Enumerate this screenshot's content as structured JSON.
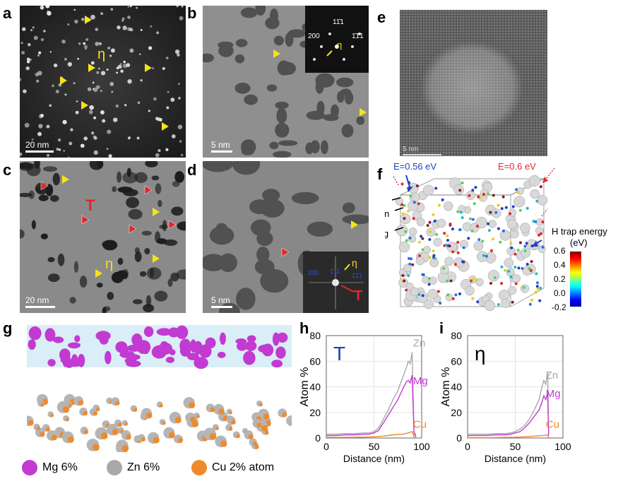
{
  "panels": {
    "a": {
      "label": "a",
      "scale": "20 nm",
      "eta": "η"
    },
    "b": {
      "label": "b",
      "scale": "5 nm",
      "inset": {
        "s200": "200",
        "s1m11": "11̄1",
        "sm1m11": "1̄1̄1",
        "eta": "η"
      }
    },
    "c": {
      "label": "c",
      "scale": "20 nm",
      "T": "T",
      "eta": "η"
    },
    "d": {
      "label": "d",
      "scale": "5 nm",
      "inset": {
        "s200": "200",
        "s111": "1̄11",
        "s11x": "1̄1̄1",
        "eta": "η",
        "T": "T"
      }
    },
    "e": {
      "label": "e",
      "scale": "5 nm"
    },
    "f": {
      "label": "f",
      "e056": "E=0.56 eV",
      "e06": "E=0.6 eV",
      "al": "Al",
      "zn": "Zn",
      "mg": "Mg",
      "cbar_title1": "H trap energy",
      "cbar_title2": "(eV)",
      "cbar_ticks": [
        "0.6",
        "0.4",
        "0.2",
        "0.0",
        "-0.2"
      ]
    },
    "g": {
      "label": "g",
      "legend": [
        "Mg 6%",
        "Zn 6%",
        "Cu 2% atom"
      ]
    }
  },
  "colors": {
    "mg": "#c23ad2",
    "zn": "#a8a8a8",
    "cu": "#ef8a2c",
    "yellow": "#f5e31a",
    "red": "#e0282a",
    "blue": "#1e3fc2"
  },
  "chart_data": [
    {
      "type": "line",
      "panel": "h",
      "annotation": "T",
      "xlabel": "Distance (nm)",
      "ylabel": "Atom %",
      "xlim": [
        0,
        100
      ],
      "ylim": [
        0,
        80
      ],
      "xticks": [
        0,
        50,
        100
      ],
      "yticks": [
        0,
        20,
        40,
        60,
        80
      ],
      "series": [
        {
          "name": "Zn",
          "color": "#a8a8a8",
          "x": [
            0,
            10,
            20,
            30,
            40,
            45,
            50,
            55,
            60,
            65,
            70,
            75,
            80,
            84,
            86,
            88,
            90,
            92,
            94
          ],
          "y": [
            3,
            3,
            3.5,
            3.5,
            4,
            4,
            5,
            8,
            15,
            22,
            30,
            37,
            47,
            55,
            60,
            58,
            67,
            5,
            2
          ]
        },
        {
          "name": "Mg",
          "color": "#c23ad2",
          "x": [
            0,
            10,
            20,
            30,
            40,
            45,
            50,
            55,
            60,
            65,
            70,
            75,
            80,
            84,
            86,
            88,
            90,
            92,
            94
          ],
          "y": [
            2,
            2,
            2.5,
            2.5,
            3,
            3,
            4,
            6,
            12,
            18,
            24,
            30,
            38,
            44,
            45,
            43,
            49,
            4,
            1
          ]
        },
        {
          "name": "Cu",
          "color": "#ef8a2c",
          "x": [
            0,
            10,
            20,
            30,
            40,
            50,
            60,
            70,
            80,
            86,
            90,
            92,
            94
          ],
          "y": [
            0.5,
            0.5,
            0.5,
            0.6,
            0.7,
            1,
            1.5,
            2.5,
            3,
            4,
            5,
            1,
            0
          ]
        }
      ]
    },
    {
      "type": "line",
      "panel": "i",
      "annotation": "η",
      "xlabel": "Distance (nm)",
      "ylabel": "Atom %",
      "xlim": [
        0,
        100
      ],
      "ylim": [
        0,
        80
      ],
      "xticks": [
        0,
        50,
        100
      ],
      "yticks": [
        0,
        20,
        40,
        60,
        80
      ],
      "series": [
        {
          "name": "Zn",
          "color": "#a8a8a8",
          "x": [
            0,
            10,
            20,
            30,
            40,
            45,
            50,
            55,
            60,
            65,
            70,
            75,
            78,
            80,
            82,
            84,
            85
          ],
          "y": [
            3,
            3,
            3,
            3.5,
            3.5,
            4,
            5,
            7,
            10,
            15,
            22,
            30,
            40,
            45,
            42,
            52,
            3
          ]
        },
        {
          "name": "Mg",
          "color": "#c23ad2",
          "x": [
            0,
            10,
            20,
            30,
            40,
            45,
            50,
            55,
            60,
            65,
            70,
            75,
            78,
            80,
            82,
            84,
            85
          ],
          "y": [
            2,
            2,
            2,
            2.5,
            2.5,
            3,
            4,
            5,
            8,
            12,
            17,
            22,
            28,
            33,
            30,
            35,
            2
          ]
        },
        {
          "name": "Cu",
          "color": "#ef8a2c",
          "x": [
            0,
            10,
            20,
            30,
            40,
            50,
            60,
            70,
            80,
            84,
            85
          ],
          "y": [
            0.3,
            0.3,
            0.3,
            0.4,
            0.5,
            0.6,
            1,
            1.5,
            2,
            2.5,
            0
          ]
        }
      ]
    }
  ]
}
